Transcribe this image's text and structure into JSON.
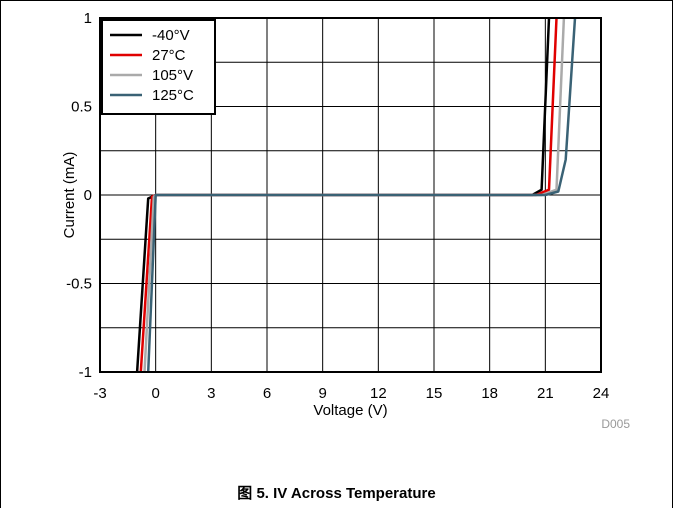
{
  "caption": "图 5. IV Across Temperature",
  "chart_data": {
    "type": "line",
    "title": "",
    "xlabel": "Voltage (V)",
    "ylabel": "Current (mA)",
    "xlim": [
      -3,
      24
    ],
    "ylim": [
      -1,
      1
    ],
    "xticks": [
      -3,
      0,
      3,
      6,
      9,
      12,
      15,
      18,
      21,
      24
    ],
    "yticks": [
      -1,
      -0.5,
      0,
      0.5,
      1
    ],
    "xtick_labels": [
      "-3",
      "0",
      "3",
      "6",
      "9",
      "12",
      "15",
      "18",
      "21",
      "24"
    ],
    "ytick_labels": [
      "-1",
      "-0.5",
      "0",
      "0.5",
      "1"
    ],
    "grid": true,
    "legend_position": "top-left",
    "watermark": "D005",
    "series": [
      {
        "name": "-40°V",
        "color": "#000000",
        "x": [
          -1.0,
          -0.4,
          0.0,
          20.3,
          20.8,
          21.2
        ],
        "y": [
          -1.0,
          -0.02,
          0.0,
          0.0,
          0.03,
          1.0
        ]
      },
      {
        "name": "27°C",
        "color": "#e00000",
        "x": [
          -0.8,
          -0.2,
          0.0,
          20.5,
          21.2,
          21.6
        ],
        "y": [
          -1.0,
          -0.01,
          0.0,
          0.0,
          0.03,
          1.0
        ]
      },
      {
        "name": "105°V",
        "color": "#aaaaaa",
        "x": [
          -0.6,
          -0.1,
          0.0,
          20.8,
          21.6,
          22.0
        ],
        "y": [
          -1.0,
          -0.01,
          0.0,
          0.0,
          0.03,
          1.0
        ]
      },
      {
        "name": "125°C",
        "color": "#3a6275",
        "x": [
          -0.4,
          0.0,
          21.0,
          21.7,
          22.1,
          22.6
        ],
        "y": [
          -1.0,
          0.0,
          0.0,
          0.02,
          0.2,
          1.0
        ]
      }
    ]
  }
}
